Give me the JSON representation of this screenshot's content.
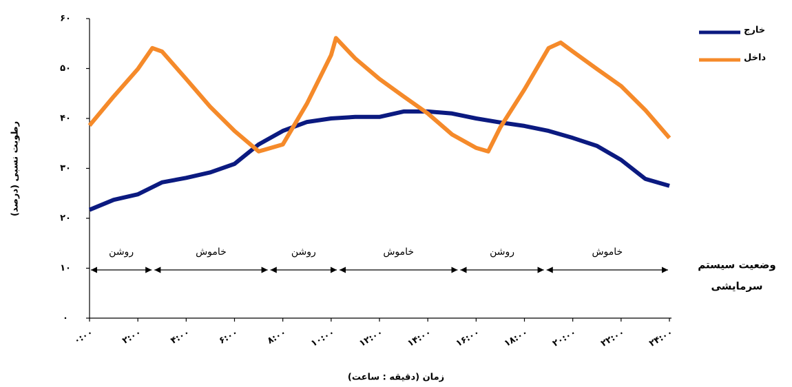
{
  "chart_data": {
    "type": "line",
    "y_axis_label": "رطوبت نسبی (درصد)",
    "x_axis_label": "زمان (دقیقه : ساعت)",
    "xlim": [
      0,
      24
    ],
    "ylim": [
      0,
      60
    ],
    "xticks": [
      {
        "value": 0,
        "label": "۰:۰۰"
      },
      {
        "value": 2,
        "label": "۲:۰۰"
      },
      {
        "value": 4,
        "label": "۴:۰۰"
      },
      {
        "value": 6,
        "label": "۶:۰۰"
      },
      {
        "value": 8,
        "label": "۸:۰۰"
      },
      {
        "value": 10,
        "label": "۱۰:۰۰"
      },
      {
        "value": 12,
        "label": "۱۲:۰۰"
      },
      {
        "value": 14,
        "label": "۱۴:۰۰"
      },
      {
        "value": 16,
        "label": "۱۶:۰۰"
      },
      {
        "value": 18,
        "label": "۱۸:۰۰"
      },
      {
        "value": 20,
        "label": "۲۰:۰۰"
      },
      {
        "value": 22,
        "label": "۲۲:۰۰"
      },
      {
        "value": 24,
        "label": "۲۴:۰۰"
      }
    ],
    "yticks": [
      {
        "value": 0,
        "label": "۰"
      },
      {
        "value": 10,
        "label": "۱۰"
      },
      {
        "value": 20,
        "label": "۲۰"
      },
      {
        "value": 30,
        "label": "۳۰"
      },
      {
        "value": 40,
        "label": "۴۰"
      },
      {
        "value": 50,
        "label": "۵۰"
      },
      {
        "value": 60,
        "label": "۶۰"
      }
    ],
    "series": [
      {
        "name": "خارج",
        "color": "#0b1a80",
        "x": [
          0,
          1,
          2,
          3,
          4,
          5,
          6,
          7,
          8,
          9,
          10,
          11,
          12,
          13,
          14,
          15,
          16,
          17,
          18,
          19,
          20,
          21,
          22,
          23,
          24
        ],
        "values": [
          21.7,
          23.7,
          24.8,
          27.2,
          28.1,
          29.2,
          30.9,
          34.8,
          37.5,
          39.3,
          40,
          40.3,
          40.3,
          41.4,
          41.4,
          41,
          40,
          39.2,
          38.5,
          37.5,
          36.1,
          34.5,
          31.7,
          27.9,
          26.5
        ]
      },
      {
        "name": "داخل",
        "color": "#f58a2a",
        "x": [
          0,
          1,
          2,
          2.6,
          3,
          4,
          5,
          6,
          7,
          8,
          9,
          10,
          10.2,
          11,
          12,
          13,
          14,
          15,
          16,
          16.5,
          17,
          18,
          19,
          19.5,
          20,
          21,
          22,
          23,
          24
        ],
        "values": [
          38.6,
          44.4,
          49.9,
          54.1,
          53.4,
          47.9,
          42.3,
          37.5,
          33.4,
          34.8,
          43,
          52.7,
          56.1,
          52,
          47.9,
          44.4,
          41,
          36.8,
          34.1,
          33.4,
          38.2,
          45.8,
          54.1,
          55.2,
          53.4,
          49.9,
          46.5,
          41.7,
          36.1
        ]
      }
    ],
    "status_title": [
      "وضعیت سیستم",
      "سرمایشی"
    ],
    "status_segments": [
      {
        "label": "روشن",
        "start": 0,
        "end": 2.63
      },
      {
        "label": "خاموش",
        "start": 2.63,
        "end": 7.43
      },
      {
        "label": "روشن",
        "start": 7.43,
        "end": 10.29
      },
      {
        "label": "خاموش",
        "start": 10.29,
        "end": 15.29
      },
      {
        "label": "روشن",
        "start": 15.29,
        "end": 18.86
      },
      {
        "label": "خاموش",
        "start": 18.86,
        "end": 24
      }
    ]
  }
}
